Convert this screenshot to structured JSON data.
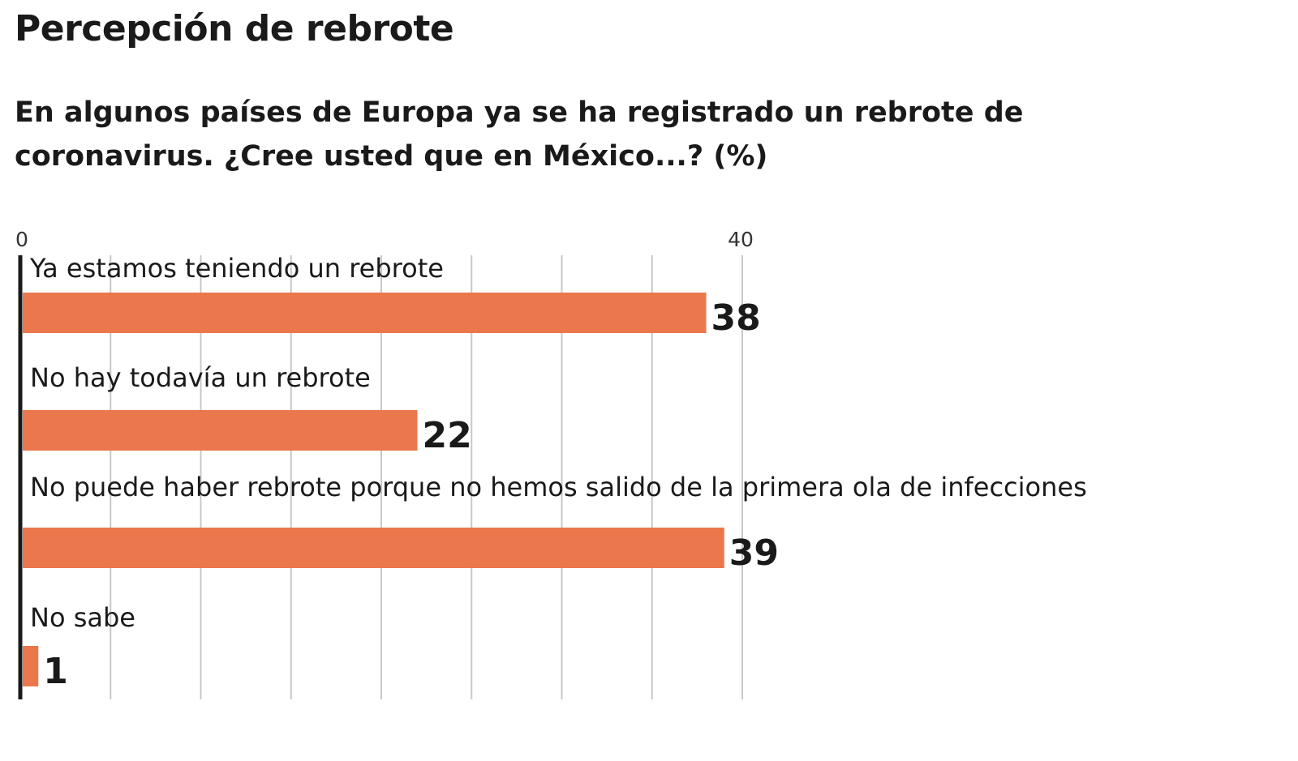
{
  "chart_data": {
    "type": "bar",
    "orientation": "horizontal",
    "title": "Percepción de rebrote",
    "subtitle": "En algunos países de Europa ya se ha registrado un rebrote de coronavirus. ¿Cree usted que en México...?  (%)",
    "categories": [
      "Ya estamos teniendo un rebrote",
      "No hay todavía un rebrote",
      "No puede haber rebrote porque no hemos salido de la primera ola de infecciones",
      "No sabe"
    ],
    "values": [
      38,
      22,
      39,
      1
    ],
    "xlim": [
      0,
      40
    ],
    "tick_labels": [
      "0",
      "40"
    ],
    "tick_values": [
      0,
      40
    ],
    "gridline_step": 5,
    "grid": true,
    "legend": "none",
    "bar_color": "#eb774c"
  }
}
